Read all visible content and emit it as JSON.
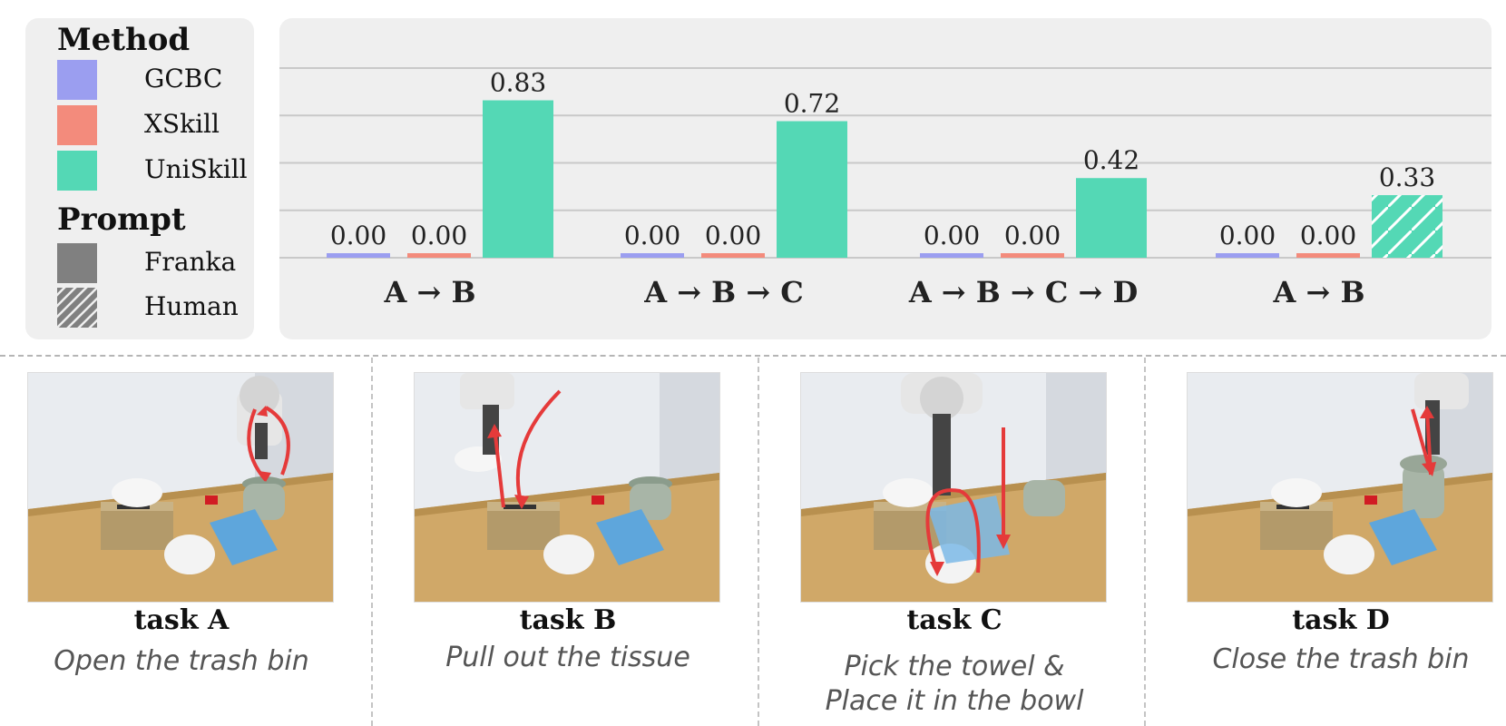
{
  "legend": {
    "method_title": "Method",
    "methods": [
      {
        "label": "GCBC",
        "color": "#9b9ef0"
      },
      {
        "label": "XSkill",
        "color": "#f38b7c"
      },
      {
        "label": "UniSkill",
        "color": "#54d8b5"
      }
    ],
    "prompt_title": "Prompt",
    "prompts": [
      {
        "label": "Franka",
        "style": "solid-gray"
      },
      {
        "label": "Human",
        "style": "hatched-gray"
      }
    ]
  },
  "chart_data": {
    "type": "bar",
    "title": "",
    "xlabel": "",
    "ylabel": "",
    "ylim": [
      0,
      1
    ],
    "grid": true,
    "categories": [
      "A → B",
      "A → B → C",
      "A → B → C → D",
      "A → B"
    ],
    "prompt_per_category": [
      "Franka",
      "Franka",
      "Franka",
      "Human"
    ],
    "series": [
      {
        "name": "GCBC",
        "color": "#9b9ef0",
        "values": [
          0.0,
          0.0,
          0.0,
          0.0
        ]
      },
      {
        "name": "XSkill",
        "color": "#f38b7c",
        "values": [
          0.0,
          0.0,
          0.0,
          0.0
        ]
      },
      {
        "name": "UniSkill",
        "color": "#54d8b5",
        "values": [
          0.83,
          0.72,
          0.42,
          0.33
        ]
      }
    ],
    "value_labels": [
      [
        "0.00",
        "0.00",
        "0.00",
        "0.00"
      ],
      [
        "0.00",
        "0.00",
        "0.00",
        "0.00"
      ],
      [
        "0.83",
        "0.72",
        "0.42",
        "0.33"
      ]
    ]
  },
  "tasks": [
    {
      "name": "task A",
      "desc": [
        "Open the trash bin"
      ]
    },
    {
      "name": "task B",
      "desc": [
        "Pull out the tissue"
      ]
    },
    {
      "name": "task C",
      "desc": [
        "Pick the towel &",
        "Place it in the bowl"
      ]
    },
    {
      "name": "task D",
      "desc": [
        "Close the trash bin"
      ]
    }
  ]
}
